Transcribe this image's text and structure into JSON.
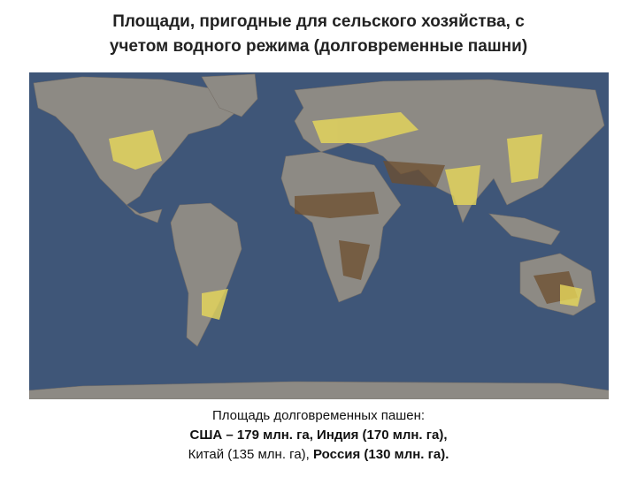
{
  "header": {
    "title_lines": [
      "Площади, пригодные для сельского хозяйства, с",
      "учетом водного режима (долговременные пашни)"
    ]
  },
  "caption": {
    "heading": "Площадь долговременных пашен:",
    "lines": [
      [
        {
          "text": "США – 179 млн. га, Индия (170 млн. га),",
          "bold": true
        }
      ],
      [
        {
          "text": "Китай (135 млн. га), ",
          "bold": false
        },
        {
          "text": "Россия (130 млн. га).",
          "bold": true
        }
      ]
    ]
  }
}
